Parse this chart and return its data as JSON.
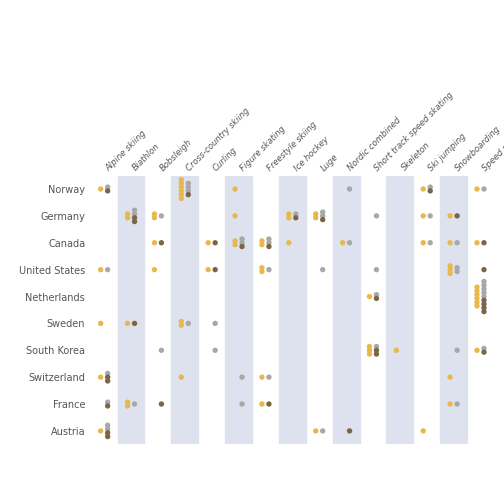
{
  "countries": [
    "Norway",
    "Germany",
    "Canada",
    "United States",
    "Netherlands",
    "Sweden",
    "South Korea",
    "Switzerland",
    "France",
    "Austria"
  ],
  "sports": [
    "Alpine skiing",
    "Biathlon",
    "Bobsleigh",
    "Cross-country skiing",
    "Curling",
    "Figure skating",
    "Freestyle skiing",
    "Ice hockey",
    "Luge",
    "Nordic combined",
    "Short track speed skating",
    "Skeleton",
    "Ski jumping",
    "Snowboarding",
    "Speed skating"
  ],
  "shaded_cols": [
    1,
    3,
    5,
    7,
    9,
    11,
    13
  ],
  "background_color": "#ffffff",
  "col_bg_color": "#dde2ee",
  "gold_color": "#e8b84b",
  "silver_color": "#a8a8a8",
  "bronze_color": "#7a6645",
  "medals": {
    "Norway": {
      "Alpine skiing": {
        "gold": 1,
        "silver": 1,
        "bronze": 1
      },
      "Biathlon": {
        "gold": 0,
        "silver": 0,
        "bronze": 0
      },
      "Bobsleigh": {
        "gold": 0,
        "silver": 0,
        "bronze": 0
      },
      "Cross-country skiing": {
        "gold": 6,
        "silver": 3,
        "bronze": 1
      },
      "Curling": {
        "gold": 0,
        "silver": 0,
        "bronze": 0
      },
      "Figure skating": {
        "gold": 1,
        "silver": 0,
        "bronze": 0
      },
      "Freestyle skiing": {
        "gold": 0,
        "silver": 0,
        "bronze": 0
      },
      "Ice hockey": {
        "gold": 0,
        "silver": 0,
        "bronze": 0
      },
      "Luge": {
        "gold": 0,
        "silver": 0,
        "bronze": 0
      },
      "Nordic combined": {
        "gold": 0,
        "silver": 1,
        "bronze": 0
      },
      "Short track speed skating": {
        "gold": 0,
        "silver": 0,
        "bronze": 0
      },
      "Skeleton": {
        "gold": 0,
        "silver": 0,
        "bronze": 0
      },
      "Ski jumping": {
        "gold": 1,
        "silver": 1,
        "bronze": 1
      },
      "Snowboarding": {
        "gold": 0,
        "silver": 0,
        "bronze": 0
      },
      "Speed skating": {
        "gold": 1,
        "silver": 1,
        "bronze": 0
      }
    },
    "Germany": {
      "Alpine skiing": {
        "gold": 0,
        "silver": 0,
        "bronze": 0
      },
      "Biathlon": {
        "gold": 2,
        "silver": 2,
        "bronze": 2
      },
      "Bobsleigh": {
        "gold": 2,
        "silver": 1,
        "bronze": 0
      },
      "Cross-country skiing": {
        "gold": 0,
        "silver": 0,
        "bronze": 0
      },
      "Curling": {
        "gold": 0,
        "silver": 0,
        "bronze": 0
      },
      "Figure skating": {
        "gold": 1,
        "silver": 0,
        "bronze": 0
      },
      "Freestyle skiing": {
        "gold": 0,
        "silver": 0,
        "bronze": 0
      },
      "Ice hockey": {
        "gold": 2,
        "silver": 1,
        "bronze": 1
      },
      "Luge": {
        "gold": 2,
        "silver": 2,
        "bronze": 1
      },
      "Nordic combined": {
        "gold": 0,
        "silver": 0,
        "bronze": 0
      },
      "Short track speed skating": {
        "gold": 0,
        "silver": 1,
        "bronze": 0
      },
      "Skeleton": {
        "gold": 0,
        "silver": 0,
        "bronze": 0
      },
      "Ski jumping": {
        "gold": 1,
        "silver": 1,
        "bronze": 0
      },
      "Snowboarding": {
        "gold": 1,
        "silver": 0,
        "bronze": 1
      },
      "Speed skating": {
        "gold": 0,
        "silver": 0,
        "bronze": 0
      }
    },
    "Canada": {
      "Alpine skiing": {
        "gold": 0,
        "silver": 0,
        "bronze": 0
      },
      "Biathlon": {
        "gold": 0,
        "silver": 0,
        "bronze": 0
      },
      "Bobsleigh": {
        "gold": 1,
        "silver": 0,
        "bronze": 1
      },
      "Cross-country skiing": {
        "gold": 0,
        "silver": 0,
        "bronze": 0
      },
      "Curling": {
        "gold": 1,
        "silver": 0,
        "bronze": 1
      },
      "Figure skating": {
        "gold": 2,
        "silver": 2,
        "bronze": 1
      },
      "Freestyle skiing": {
        "gold": 2,
        "silver": 2,
        "bronze": 1
      },
      "Ice hockey": {
        "gold": 1,
        "silver": 0,
        "bronze": 0
      },
      "Luge": {
        "gold": 0,
        "silver": 0,
        "bronze": 0
      },
      "Nordic combined": {
        "gold": 1,
        "silver": 1,
        "bronze": 0
      },
      "Short track speed skating": {
        "gold": 0,
        "silver": 0,
        "bronze": 0
      },
      "Skeleton": {
        "gold": 0,
        "silver": 0,
        "bronze": 0
      },
      "Ski jumping": {
        "gold": 1,
        "silver": 1,
        "bronze": 0
      },
      "Snowboarding": {
        "gold": 1,
        "silver": 1,
        "bronze": 0
      },
      "Speed skating": {
        "gold": 1,
        "silver": 0,
        "bronze": 1
      }
    },
    "United States": {
      "Alpine skiing": {
        "gold": 1,
        "silver": 1,
        "bronze": 0
      },
      "Biathlon": {
        "gold": 0,
        "silver": 0,
        "bronze": 0
      },
      "Bobsleigh": {
        "gold": 1,
        "silver": 0,
        "bronze": 0
      },
      "Cross-country skiing": {
        "gold": 0,
        "silver": 0,
        "bronze": 0
      },
      "Curling": {
        "gold": 1,
        "silver": 0,
        "bronze": 1
      },
      "Figure skating": {
        "gold": 0,
        "silver": 0,
        "bronze": 0
      },
      "Freestyle skiing": {
        "gold": 2,
        "silver": 1,
        "bronze": 0
      },
      "Ice hockey": {
        "gold": 0,
        "silver": 0,
        "bronze": 0
      },
      "Luge": {
        "gold": 0,
        "silver": 1,
        "bronze": 0
      },
      "Nordic combined": {
        "gold": 0,
        "silver": 0,
        "bronze": 0
      },
      "Short track speed skating": {
        "gold": 0,
        "silver": 1,
        "bronze": 0
      },
      "Skeleton": {
        "gold": 0,
        "silver": 0,
        "bronze": 0
      },
      "Ski jumping": {
        "gold": 0,
        "silver": 0,
        "bronze": 0
      },
      "Snowboarding": {
        "gold": 3,
        "silver": 2,
        "bronze": 0
      },
      "Speed skating": {
        "gold": 0,
        "silver": 0,
        "bronze": 1
      }
    },
    "Netherlands": {
      "Alpine skiing": {
        "gold": 0,
        "silver": 0,
        "bronze": 0
      },
      "Biathlon": {
        "gold": 0,
        "silver": 0,
        "bronze": 0
      },
      "Bobsleigh": {
        "gold": 0,
        "silver": 0,
        "bronze": 0
      },
      "Cross-country skiing": {
        "gold": 0,
        "silver": 0,
        "bronze": 0
      },
      "Curling": {
        "gold": 0,
        "silver": 0,
        "bronze": 0
      },
      "Figure skating": {
        "gold": 0,
        "silver": 0,
        "bronze": 0
      },
      "Freestyle skiing": {
        "gold": 0,
        "silver": 0,
        "bronze": 0
      },
      "Ice hockey": {
        "gold": 0,
        "silver": 0,
        "bronze": 0
      },
      "Luge": {
        "gold": 0,
        "silver": 0,
        "bronze": 0
      },
      "Nordic combined": {
        "gold": 0,
        "silver": 0,
        "bronze": 0
      },
      "Short track speed skating": {
        "gold": 1,
        "silver": 1,
        "bronze": 1
      },
      "Skeleton": {
        "gold": 0,
        "silver": 0,
        "bronze": 0
      },
      "Ski jumping": {
        "gold": 0,
        "silver": 0,
        "bronze": 0
      },
      "Snowboarding": {
        "gold": 0,
        "silver": 0,
        "bronze": 0
      },
      "Speed skating": {
        "gold": 6,
        "silver": 5,
        "bronze": 4
      }
    },
    "Sweden": {
      "Alpine skiing": {
        "gold": 1,
        "silver": 0,
        "bronze": 0
      },
      "Biathlon": {
        "gold": 1,
        "silver": 0,
        "bronze": 1
      },
      "Bobsleigh": {
        "gold": 0,
        "silver": 0,
        "bronze": 0
      },
      "Cross-country skiing": {
        "gold": 2,
        "silver": 1,
        "bronze": 0
      },
      "Curling": {
        "gold": 0,
        "silver": 1,
        "bronze": 0
      },
      "Figure skating": {
        "gold": 0,
        "silver": 0,
        "bronze": 0
      },
      "Freestyle skiing": {
        "gold": 0,
        "silver": 0,
        "bronze": 0
      },
      "Ice hockey": {
        "gold": 0,
        "silver": 0,
        "bronze": 0
      },
      "Luge": {
        "gold": 0,
        "silver": 0,
        "bronze": 0
      },
      "Nordic combined": {
        "gold": 0,
        "silver": 0,
        "bronze": 0
      },
      "Short track speed skating": {
        "gold": 0,
        "silver": 0,
        "bronze": 0
      },
      "Skeleton": {
        "gold": 0,
        "silver": 0,
        "bronze": 0
      },
      "Ski jumping": {
        "gold": 0,
        "silver": 0,
        "bronze": 0
      },
      "Snowboarding": {
        "gold": 0,
        "silver": 0,
        "bronze": 0
      },
      "Speed skating": {
        "gold": 0,
        "silver": 0,
        "bronze": 0
      }
    },
    "South Korea": {
      "Alpine skiing": {
        "gold": 0,
        "silver": 0,
        "bronze": 0
      },
      "Biathlon": {
        "gold": 0,
        "silver": 0,
        "bronze": 0
      },
      "Bobsleigh": {
        "gold": 0,
        "silver": 1,
        "bronze": 0
      },
      "Cross-country skiing": {
        "gold": 0,
        "silver": 0,
        "bronze": 0
      },
      "Curling": {
        "gold": 0,
        "silver": 1,
        "bronze": 0
      },
      "Figure skating": {
        "gold": 0,
        "silver": 0,
        "bronze": 0
      },
      "Freestyle skiing": {
        "gold": 0,
        "silver": 0,
        "bronze": 0
      },
      "Ice hockey": {
        "gold": 0,
        "silver": 0,
        "bronze": 0
      },
      "Luge": {
        "gold": 0,
        "silver": 0,
        "bronze": 0
      },
      "Nordic combined": {
        "gold": 0,
        "silver": 0,
        "bronze": 0
      },
      "Short track speed skating": {
        "gold": 3,
        "silver": 1,
        "bronze": 2
      },
      "Skeleton": {
        "gold": 1,
        "silver": 0,
        "bronze": 0
      },
      "Ski jumping": {
        "gold": 0,
        "silver": 0,
        "bronze": 0
      },
      "Snowboarding": {
        "gold": 0,
        "silver": 1,
        "bronze": 0
      },
      "Speed skating": {
        "gold": 1,
        "silver": 1,
        "bronze": 1
      }
    },
    "Switzerland": {
      "Alpine skiing": {
        "gold": 1,
        "silver": 1,
        "bronze": 2
      },
      "Biathlon": {
        "gold": 0,
        "silver": 0,
        "bronze": 0
      },
      "Bobsleigh": {
        "gold": 0,
        "silver": 0,
        "bronze": 0
      },
      "Cross-country skiing": {
        "gold": 1,
        "silver": 0,
        "bronze": 0
      },
      "Curling": {
        "gold": 0,
        "silver": 0,
        "bronze": 0
      },
      "Figure skating": {
        "gold": 0,
        "silver": 1,
        "bronze": 0
      },
      "Freestyle skiing": {
        "gold": 1,
        "silver": 1,
        "bronze": 0
      },
      "Ice hockey": {
        "gold": 0,
        "silver": 0,
        "bronze": 0
      },
      "Luge": {
        "gold": 0,
        "silver": 0,
        "bronze": 0
      },
      "Nordic combined": {
        "gold": 0,
        "silver": 0,
        "bronze": 0
      },
      "Short track speed skating": {
        "gold": 0,
        "silver": 0,
        "bronze": 0
      },
      "Skeleton": {
        "gold": 0,
        "silver": 0,
        "bronze": 0
      },
      "Ski jumping": {
        "gold": 0,
        "silver": 0,
        "bronze": 0
      },
      "Snowboarding": {
        "gold": 1,
        "silver": 0,
        "bronze": 0
      },
      "Speed skating": {
        "gold": 0,
        "silver": 0,
        "bronze": 0
      }
    },
    "France": {
      "Alpine skiing": {
        "gold": 0,
        "silver": 1,
        "bronze": 1
      },
      "Biathlon": {
        "gold": 2,
        "silver": 1,
        "bronze": 0
      },
      "Bobsleigh": {
        "gold": 0,
        "silver": 0,
        "bronze": 1
      },
      "Cross-country skiing": {
        "gold": 0,
        "silver": 0,
        "bronze": 0
      },
      "Curling": {
        "gold": 0,
        "silver": 0,
        "bronze": 0
      },
      "Figure skating": {
        "gold": 0,
        "silver": 1,
        "bronze": 0
      },
      "Freestyle skiing": {
        "gold": 1,
        "silver": 0,
        "bronze": 1
      },
      "Ice hockey": {
        "gold": 0,
        "silver": 0,
        "bronze": 0
      },
      "Luge": {
        "gold": 0,
        "silver": 0,
        "bronze": 0
      },
      "Nordic combined": {
        "gold": 0,
        "silver": 0,
        "bronze": 0
      },
      "Short track speed skating": {
        "gold": 0,
        "silver": 0,
        "bronze": 0
      },
      "Skeleton": {
        "gold": 0,
        "silver": 0,
        "bronze": 0
      },
      "Ski jumping": {
        "gold": 0,
        "silver": 0,
        "bronze": 0
      },
      "Snowboarding": {
        "gold": 1,
        "silver": 1,
        "bronze": 0
      },
      "Speed skating": {
        "gold": 0,
        "silver": 0,
        "bronze": 0
      }
    },
    "Austria": {
      "Alpine skiing": {
        "gold": 1,
        "silver": 2,
        "bronze": 2
      },
      "Biathlon": {
        "gold": 0,
        "silver": 0,
        "bronze": 0
      },
      "Bobsleigh": {
        "gold": 0,
        "silver": 0,
        "bronze": 0
      },
      "Cross-country skiing": {
        "gold": 0,
        "silver": 0,
        "bronze": 0
      },
      "Curling": {
        "gold": 0,
        "silver": 0,
        "bronze": 0
      },
      "Figure skating": {
        "gold": 0,
        "silver": 0,
        "bronze": 0
      },
      "Freestyle skiing": {
        "gold": 0,
        "silver": 0,
        "bronze": 0
      },
      "Ice hockey": {
        "gold": 0,
        "silver": 0,
        "bronze": 0
      },
      "Luge": {
        "gold": 1,
        "silver": 1,
        "bronze": 0
      },
      "Nordic combined": {
        "gold": 0,
        "silver": 0,
        "bronze": 1
      },
      "Short track speed skating": {
        "gold": 0,
        "silver": 0,
        "bronze": 0
      },
      "Skeleton": {
        "gold": 0,
        "silver": 0,
        "bronze": 0
      },
      "Ski jumping": {
        "gold": 1,
        "silver": 0,
        "bronze": 0
      },
      "Snowboarding": {
        "gold": 0,
        "silver": 0,
        "bronze": 0
      },
      "Speed skating": {
        "gold": 0,
        "silver": 0,
        "bronze": 0
      }
    }
  }
}
